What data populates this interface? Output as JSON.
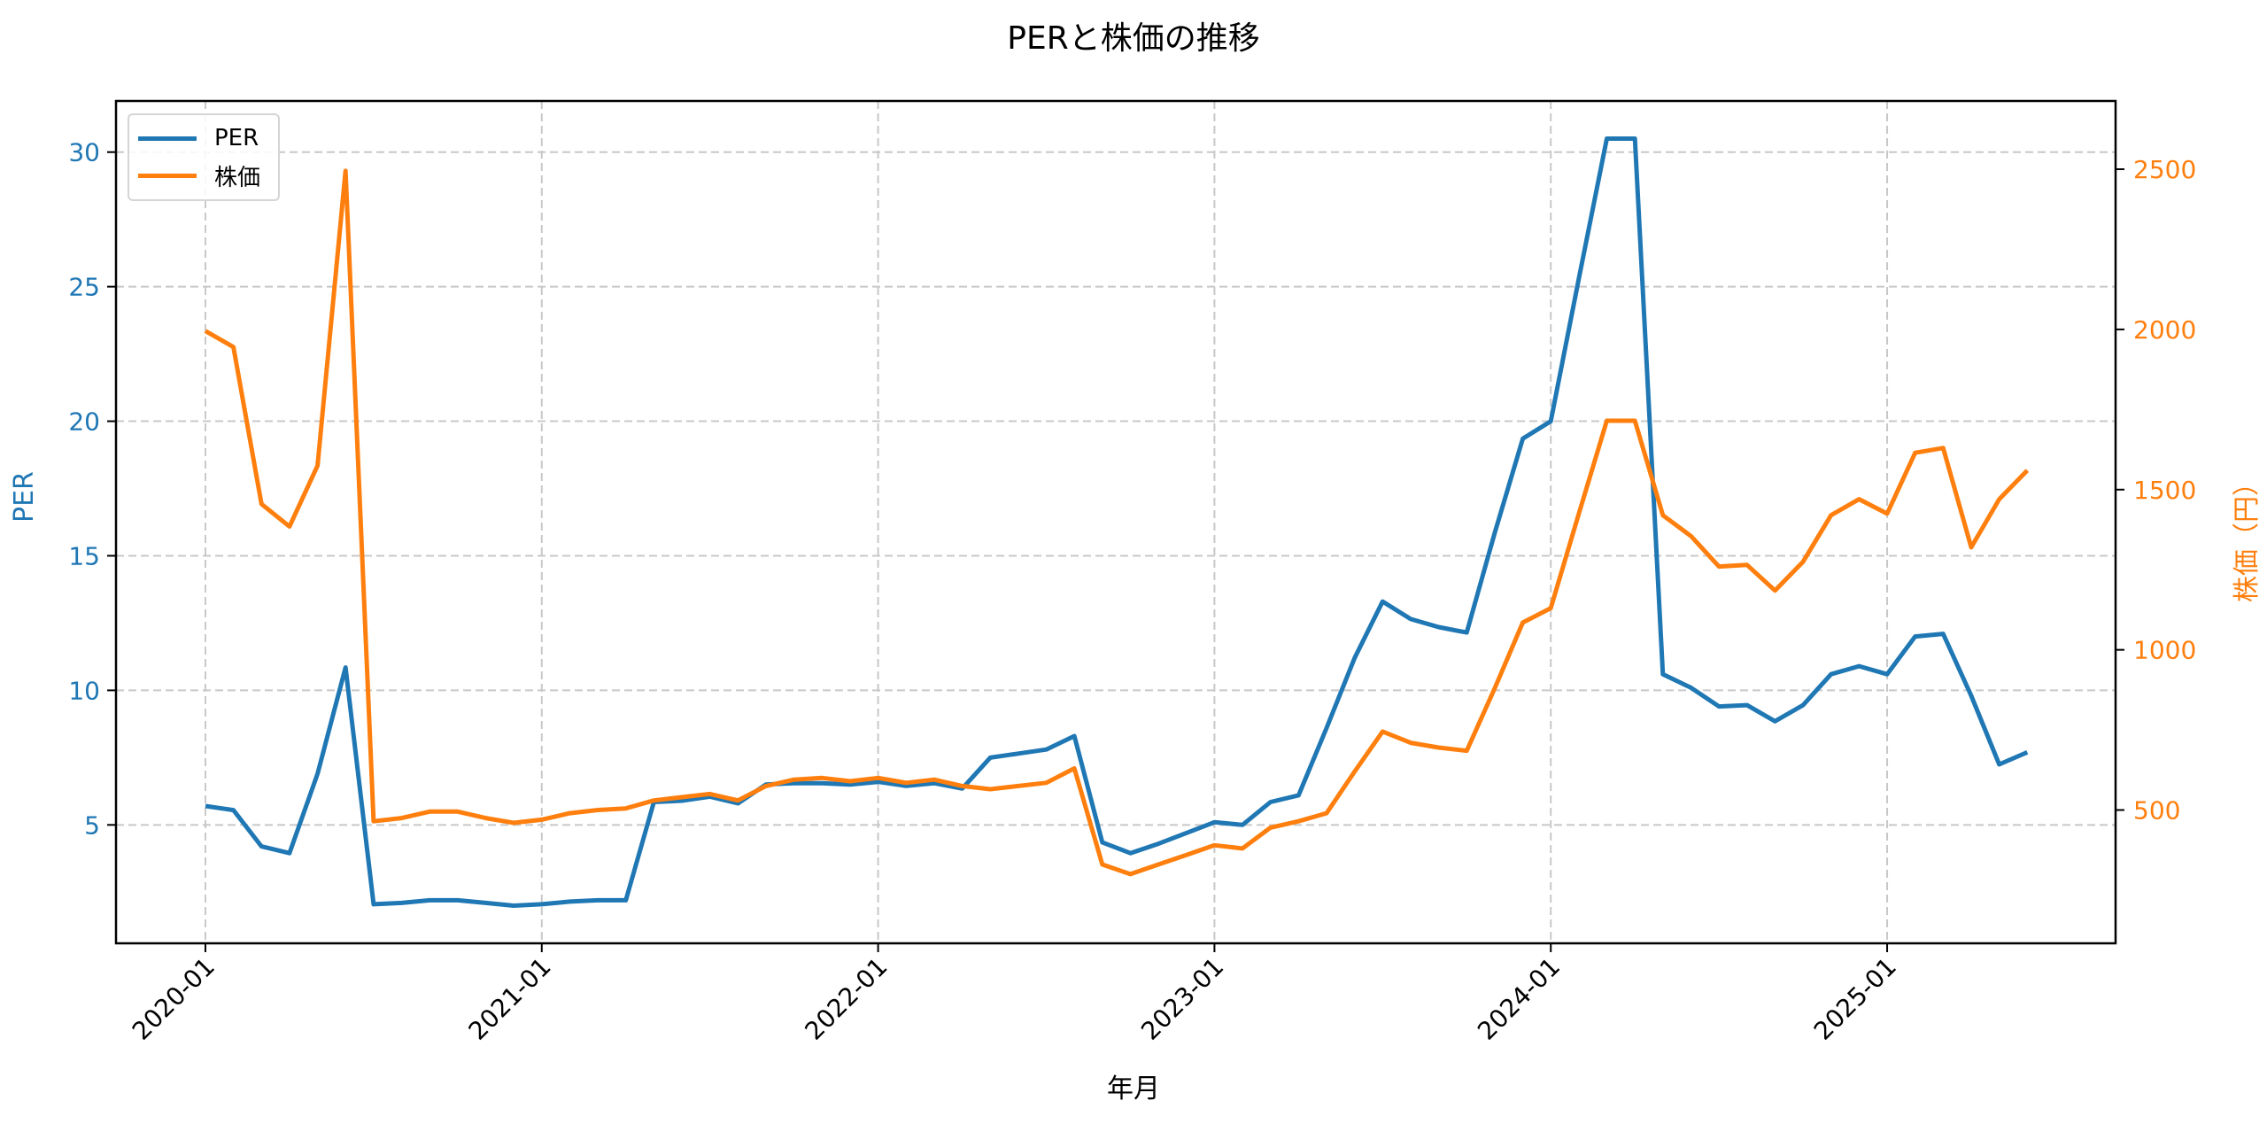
{
  "title": "PERと株価の推移",
  "colors": {
    "per": "#1f77b4",
    "price": "#ff7f0e",
    "grid": "#c8c8c8",
    "axis": "#000000"
  },
  "legend": {
    "items": [
      {
        "label": "PER",
        "color": "#1f77b4"
      },
      {
        "label": "株価",
        "color": "#ff7f0e"
      }
    ]
  },
  "chart_data": {
    "type": "line",
    "title": "PERと株価の推移",
    "xlabel": "年月",
    "ylabel": "PER",
    "ylabel_right": "株価（円）",
    "x_tick_labels": [
      "2020-01",
      "2021-01",
      "2022-01",
      "2023-01",
      "2024-01",
      "2025-01"
    ],
    "y_left_ticks": [
      5,
      10,
      15,
      20,
      25,
      30
    ],
    "y_right_ticks": [
      500,
      1000,
      1500,
      2000,
      2500
    ],
    "ylim_left": [
      0.6,
      31.9
    ],
    "ylim_right": [
      84,
      2713
    ],
    "grid": true,
    "legend_position": "upper left",
    "x": [
      "2020-01",
      "2020-02",
      "2020-03",
      "2020-04",
      "2020-05",
      "2020-06",
      "2020-07",
      "2020-08",
      "2020-09",
      "2020-10",
      "2020-11",
      "2020-12",
      "2021-01",
      "2021-02",
      "2021-03",
      "2021-04",
      "2021-05",
      "2021-06",
      "2021-07",
      "2021-08",
      "2021-09",
      "2021-10",
      "2021-11",
      "2021-12",
      "2022-01",
      "2022-02",
      "2022-03",
      "2022-04",
      "2022-05",
      "2022-06",
      "2022-07",
      "2022-08",
      "2022-09",
      "2022-10",
      "2022-11",
      "2022-12",
      "2023-01",
      "2023-02",
      "2023-03",
      "2023-04",
      "2023-05",
      "2023-06",
      "2023-07",
      "2023-08",
      "2023-09",
      "2023-10",
      "2023-11",
      "2023-12",
      "2024-01",
      "2024-02",
      "2024-03",
      "2024-04",
      "2024-05",
      "2024-06",
      "2024-07",
      "2024-08",
      "2024-09",
      "2024-10",
      "2024-11",
      "2024-12",
      "2025-01",
      "2025-02",
      "2025-03",
      "2025-04",
      "2025-05",
      "2025-06"
    ],
    "series": [
      {
        "name": "PER",
        "axis": "left",
        "color": "#1f77b4",
        "values": [
          5.7,
          5.55,
          4.2,
          3.95,
          6.9,
          10.85,
          2.05,
          2.1,
          2.2,
          2.2,
          2.1,
          2.0,
          2.05,
          2.15,
          2.2,
          2.2,
          5.85,
          5.9,
          6.05,
          5.8,
          6.5,
          6.55,
          6.55,
          6.5,
          6.6,
          6.45,
          6.55,
          6.35,
          7.5,
          7.65,
          7.8,
          8.3,
          4.35,
          3.95,
          4.3,
          4.7,
          5.1,
          5.0,
          5.85,
          6.1,
          8.6,
          11.2,
          13.3,
          12.65,
          12.35,
          12.15,
          15.85,
          19.35,
          20.0,
          25.3,
          30.5,
          30.5,
          10.6,
          10.1,
          9.4,
          9.45,
          8.85,
          9.45,
          10.6,
          10.9,
          10.6,
          12.0,
          12.1,
          9.8,
          7.25,
          7.7
        ]
      },
      {
        "name": "株価",
        "axis": "right",
        "color": "#ff7f0e",
        "values": [
          1995,
          1945,
          1455,
          1385,
          1575,
          2495,
          465,
          475,
          495,
          495,
          475,
          460,
          470,
          490,
          500,
          505,
          530,
          540,
          550,
          530,
          575,
          595,
          600,
          590,
          600,
          585,
          595,
          575,
          565,
          575,
          585,
          630,
          330,
          300,
          330,
          360,
          390,
          380,
          445,
          465,
          490,
          620,
          745,
          710,
          695,
          685,
          880,
          1085,
          1130,
          1425,
          1715,
          1715,
          1420,
          1355,
          1260,
          1265,
          1185,
          1275,
          1420,
          1470,
          1425,
          1615,
          1630,
          1320,
          1470,
          1560
        ]
      }
    ]
  }
}
